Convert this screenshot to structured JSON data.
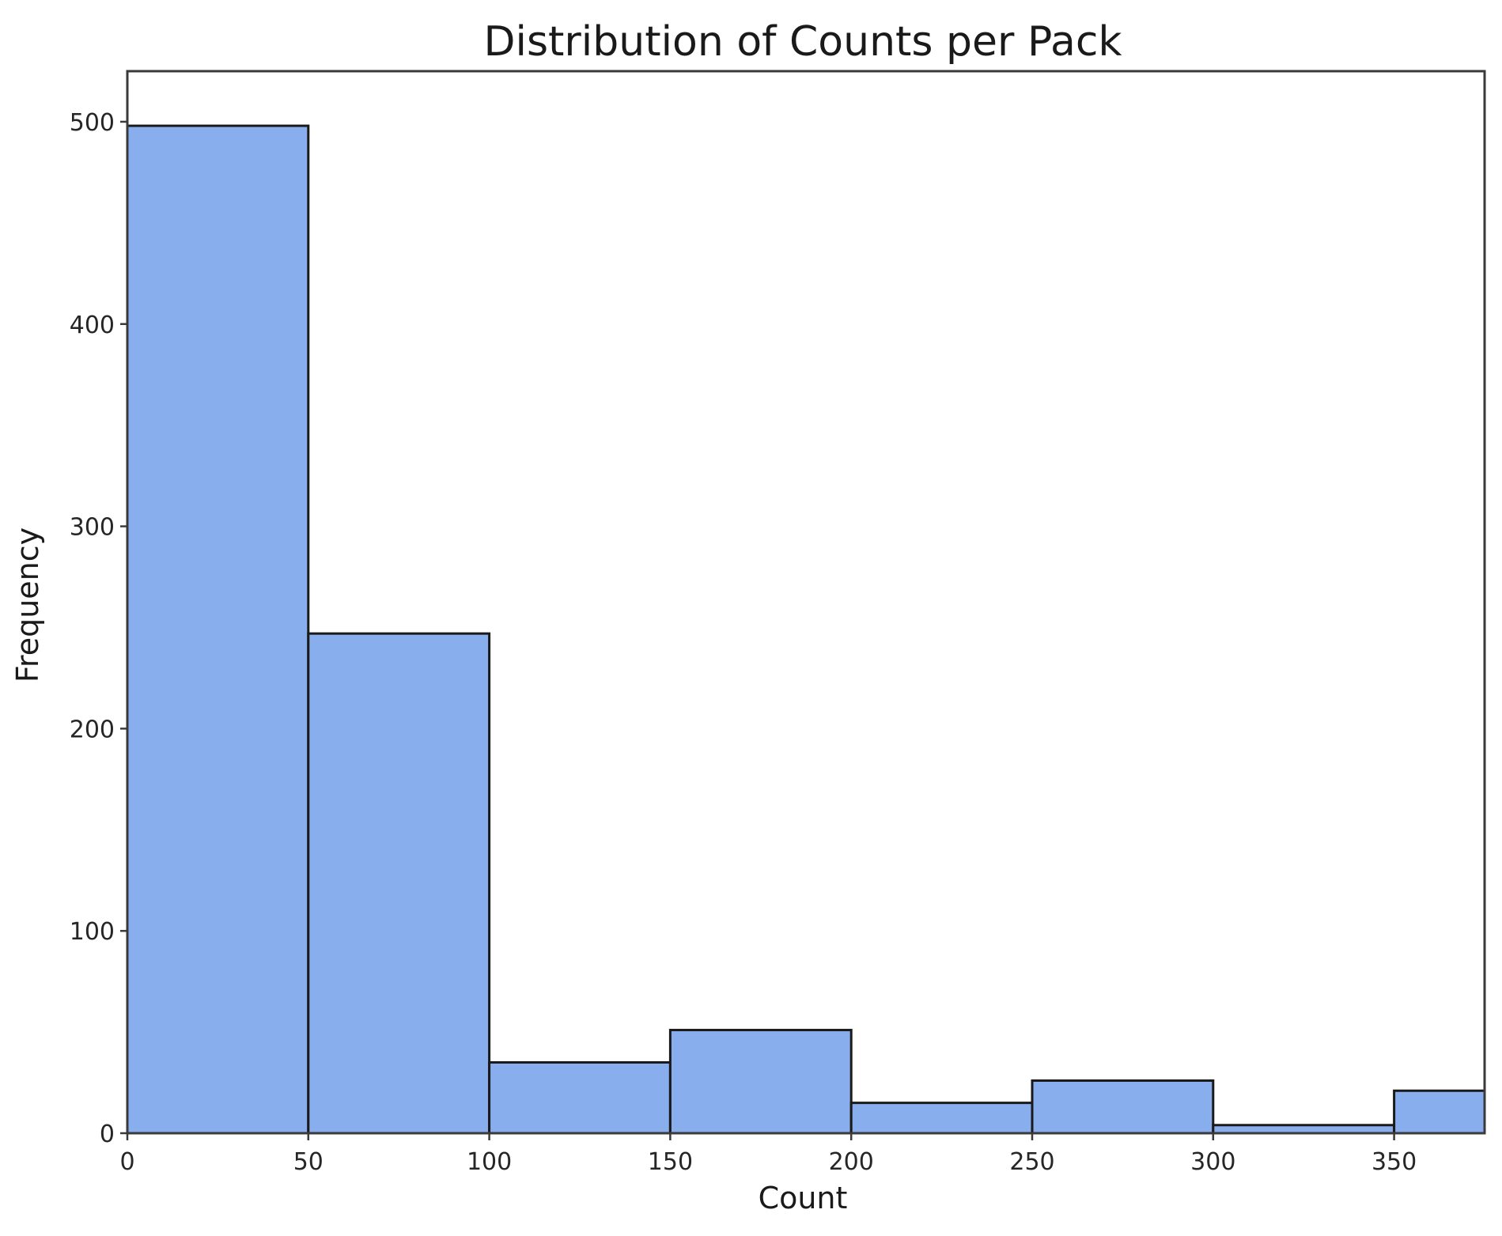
{
  "chart_data": {
    "type": "bar",
    "title": "Distribution of Counts per Pack",
    "xlabel": "Count",
    "ylabel": "Frequency",
    "bin_edges": [
      0,
      50,
      100,
      150,
      200,
      250,
      300,
      350,
      375
    ],
    "values": [
      498,
      247,
      35,
      51,
      15,
      26,
      4,
      21
    ],
    "xlim": [
      0,
      375
    ],
    "ylim": [
      0,
      525
    ],
    "xticks": [
      0,
      50,
      100,
      150,
      200,
      250,
      300,
      350
    ],
    "yticks": [
      0,
      100,
      200,
      300,
      400,
      500
    ],
    "grid": false,
    "bar_color": "#89aeed",
    "edge_color": "#1a1a1a"
  }
}
